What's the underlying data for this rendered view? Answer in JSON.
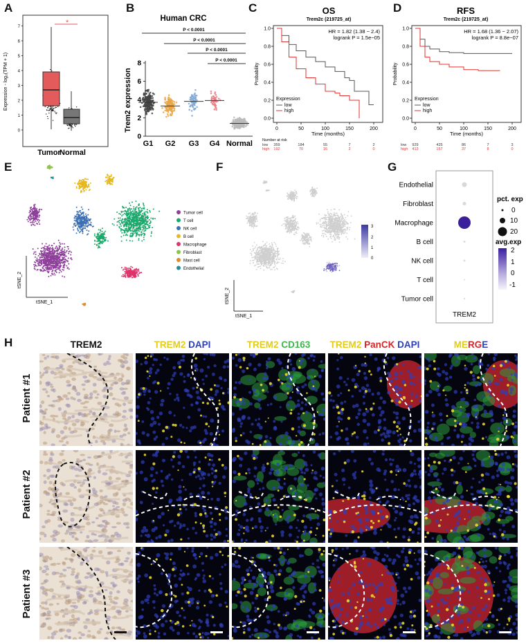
{
  "panels": {
    "A": {
      "label": "A",
      "ylabel": "Expression - log₂(TPM + 1)",
      "star": "*",
      "categories": [
        "Tumor",
        "Normal"
      ],
      "yticks": [
        "0",
        "1",
        "2",
        "3",
        "4",
        "5",
        "6",
        "7"
      ],
      "colors": {
        "Tumor": "#e35b5b",
        "Normal": "#888888"
      }
    },
    "B": {
      "label": "B",
      "title": "Human CRC",
      "ylabel": "Trem2 expression",
      "categories": [
        "G1",
        "G2",
        "G3",
        "G4",
        "Normal"
      ],
      "yticks": [
        "0",
        "2",
        "4",
        "6",
        "8"
      ],
      "pvalues": [
        "P < 0.0001",
        "P < 0.0001",
        "P < 0.0001",
        "P < 0.0001"
      ],
      "colors": [
        "#444444",
        "#e8a84a",
        "#7fa8d6",
        "#e87f86",
        "#bbbbbb"
      ]
    },
    "C": {
      "label": "C",
      "title": "OS",
      "subtitle": "Trem2c (219725_at)",
      "hr": "HR = 1.82 (1.38 − 2.4)",
      "logrank": "logrank P = 1.5e−05",
      "xlabel": "Time (months)",
      "ylabel": "Probability",
      "xticks": [
        "0",
        "50",
        "100",
        "150",
        "200"
      ],
      "yticks": [
        "0.0",
        "0.2",
        "0.4",
        "0.6",
        "0.8",
        "1.0"
      ],
      "legend_title": "Expression",
      "legend": [
        "low",
        "high"
      ],
      "risk_title": "Number at risk",
      "risk_low": [
        "low",
        "359",
        "184",
        "55",
        "7",
        "2"
      ],
      "risk_high": [
        "high",
        "192",
        "70",
        "16",
        "2",
        "0"
      ]
    },
    "D": {
      "label": "D",
      "title": "RFS",
      "subtitle": "Trem2c (219725_at)",
      "hr": "HR = 1.68 (1.36 − 2.07)",
      "logrank": "logrank P = 8.8e−07",
      "xlabel": "Time (months)",
      "ylabel": "Probability",
      "xticks": [
        "0",
        "50",
        "100",
        "150",
        "200"
      ],
      "yticks": [
        "0.0",
        "0.2",
        "0.4",
        "0.6",
        "0.8",
        "1.0"
      ],
      "legend_title": "Expression",
      "legend": [
        "low",
        "high"
      ],
      "risk_title": "Number at risk",
      "risk_low": [
        "low",
        "929",
        "425",
        "86",
        "7",
        "3"
      ],
      "risk_high": [
        "high",
        "413",
        "157",
        "37",
        "8",
        "0"
      ]
    },
    "E": {
      "label": "E",
      "xlabel": "tSNE_1",
      "ylabel": "tSNE_2",
      "legend": [
        {
          "name": "Tumor cell",
          "color": "#8e3f9b"
        },
        {
          "name": "T cell",
          "color": "#1aa86b"
        },
        {
          "name": "NK cell",
          "color": "#3c6fb5"
        },
        {
          "name": "B cell",
          "color": "#e6b821"
        },
        {
          "name": "Macrophage",
          "color": "#e0336b"
        },
        {
          "name": "Fibroblast",
          "color": "#8bc34a"
        },
        {
          "name": "Mast cell",
          "color": "#e08a2a"
        },
        {
          "name": "Endothelial",
          "color": "#1f8ea0"
        }
      ]
    },
    "F": {
      "label": "F",
      "xlabel": "tSNE_1",
      "ylabel": "tSNE_2",
      "scale": [
        "3",
        "2",
        "1",
        "0"
      ]
    },
    "G": {
      "label": "G",
      "rows": [
        "Endothelial",
        "Fibroblast",
        "Macrophage",
        "B cell",
        "NK cell",
        "T cell",
        "Tumor cell"
      ],
      "xlabel": "TREM2",
      "pct_title": "pct. exp",
      "pct_ticks": [
        "0",
        "10",
        "20"
      ],
      "avg_title": "avg.exp",
      "avg_ticks": [
        "2",
        "1",
        "0",
        "-1"
      ]
    },
    "H": {
      "label": "H",
      "headers": {
        "col1": "TREM2",
        "col2a": "TREM2",
        "col2b": "DAPI",
        "col3a": "TREM2",
        "col3b": "CD163",
        "col4a": "TREM2",
        "col4b": "PanCK",
        "col4c": "DAPI",
        "col5a": "ME",
        "col5b": "RG",
        "col5c": "E"
      },
      "patients": [
        "Patient #1",
        "Patient #2",
        "Patient #3"
      ]
    }
  }
}
